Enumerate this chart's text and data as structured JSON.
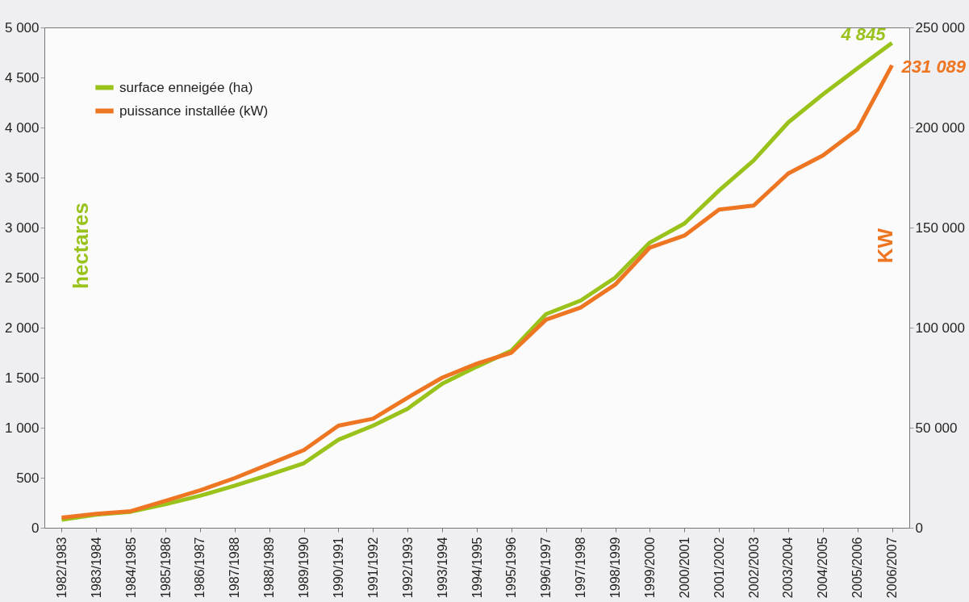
{
  "chart_data": {
    "type": "line",
    "categories": [
      "1982/1983",
      "1983/1984",
      "1984/1985",
      "1985/1986",
      "1986/1987",
      "1987/1988",
      "1988/1989",
      "1989/1990",
      "1990/1991",
      "1991/1992",
      "1992/1993",
      "1993/1994",
      "1994/1995",
      "1995/1996",
      "1996/1997",
      "1997/1998",
      "1998/1999",
      "1999/2000",
      "2000/2001",
      "2001/2002",
      "2002/2003",
      "2003/2004",
      "2004/2005",
      "2005/2006",
      "2006/2007"
    ],
    "series": [
      {
        "name": "surface enneigée (ha)",
        "color": "#99c21a",
        "values": [
          80,
          130,
          160,
          235,
          320,
          420,
          530,
          645,
          880,
          1020,
          1190,
          1440,
          1610,
          1770,
          2135,
          2270,
          2500,
          2850,
          3040,
          3370,
          3670,
          4050,
          4330,
          4590,
          4845
        ],
        "value_labels": [
          null,
          null,
          null,
          null,
          null,
          null,
          null,
          null,
          null,
          null,
          null,
          null,
          null,
          null,
          null,
          null,
          null,
          null,
          null,
          null,
          null,
          null,
          null,
          null,
          "4 845"
        ]
      },
      {
        "name": "puissance installée (kW)",
        "color": "#ee7623",
        "axis": "y2",
        "values": [
          5000,
          7000,
          8300,
          13500,
          18700,
          24800,
          31800,
          38800,
          51000,
          54500,
          65000,
          75000,
          82000,
          87500,
          104000,
          110000,
          121500,
          140000,
          146000,
          159000,
          161000,
          177000,
          186000,
          199000,
          231089
        ],
        "value_labels": [
          null,
          null,
          null,
          null,
          null,
          null,
          null,
          null,
          null,
          null,
          null,
          null,
          null,
          null,
          null,
          null,
          null,
          null,
          null,
          null,
          null,
          null,
          null,
          null,
          "231 089"
        ]
      }
    ],
    "ylabel": "hectares",
    "y2label": "KW",
    "ylim": [
      0,
      5000
    ],
    "yticks": [
      0,
      500,
      {
        "value": 1000,
        "label": "1 000"
      },
      {
        "value": 1500,
        "label": "1 500"
      },
      {
        "value": 2000,
        "label": "2 000"
      },
      {
        "value": 2500,
        "label": "2 500"
      },
      {
        "value": 3000,
        "label": "3 000"
      },
      {
        "value": 3500,
        "label": "3 500"
      },
      {
        "value": 4000,
        "label": "4 000"
      },
      {
        "value": 4500,
        "label": "4 500"
      },
      {
        "value": 5000,
        "label": "5 000"
      }
    ],
    "y2lim": [
      0,
      250000
    ],
    "y2ticks": [
      0,
      {
        "value": 50000,
        "label": "50 000"
      },
      {
        "value": 100000,
        "label": "100 000"
      },
      {
        "value": 150000,
        "label": "150 000"
      },
      {
        "value": 200000,
        "label": "200 000"
      },
      {
        "value": 250000,
        "label": "250 000"
      }
    ],
    "grid": false,
    "legend": "top left",
    "marker": "none",
    "line_style": "solid"
  }
}
